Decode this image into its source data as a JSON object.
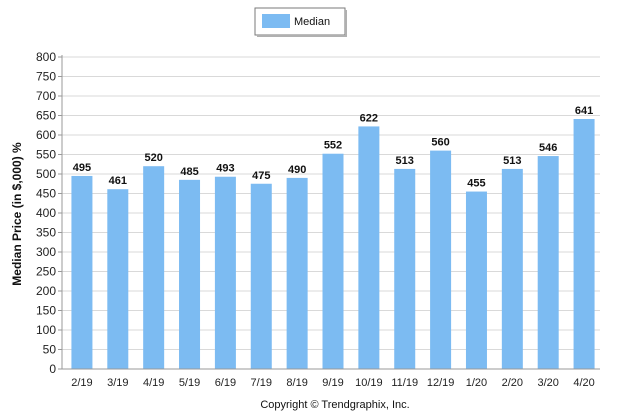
{
  "chart_data": {
    "type": "bar",
    "categories": [
      "2/19",
      "3/19",
      "4/19",
      "5/19",
      "6/19",
      "7/19",
      "8/19",
      "9/19",
      "10/19",
      "11/19",
      "12/19",
      "1/20",
      "2/20",
      "3/20",
      "4/20"
    ],
    "series": [
      {
        "name": "Median",
        "values": [
          495,
          461,
          520,
          485,
          493,
          475,
          490,
          552,
          622,
          513,
          560,
          455,
          513,
          546,
          641
        ],
        "color": "#7cbbf2"
      }
    ],
    "ylabel": "Median Price (in $,000) %",
    "xlabel": "",
    "ylim": [
      0,
      800
    ],
    "yticks": [
      0,
      50,
      100,
      150,
      200,
      250,
      300,
      350,
      400,
      450,
      500,
      550,
      600,
      650,
      700,
      750,
      800
    ],
    "grid": true,
    "legend_position": "top-center",
    "data_labels": true
  },
  "footer": {
    "copyright": "Copyright © Trendgraphix, Inc."
  },
  "colors": {
    "bar": "#7cbbf2",
    "grid": "#d9d9d9",
    "axis": "#999999"
  }
}
